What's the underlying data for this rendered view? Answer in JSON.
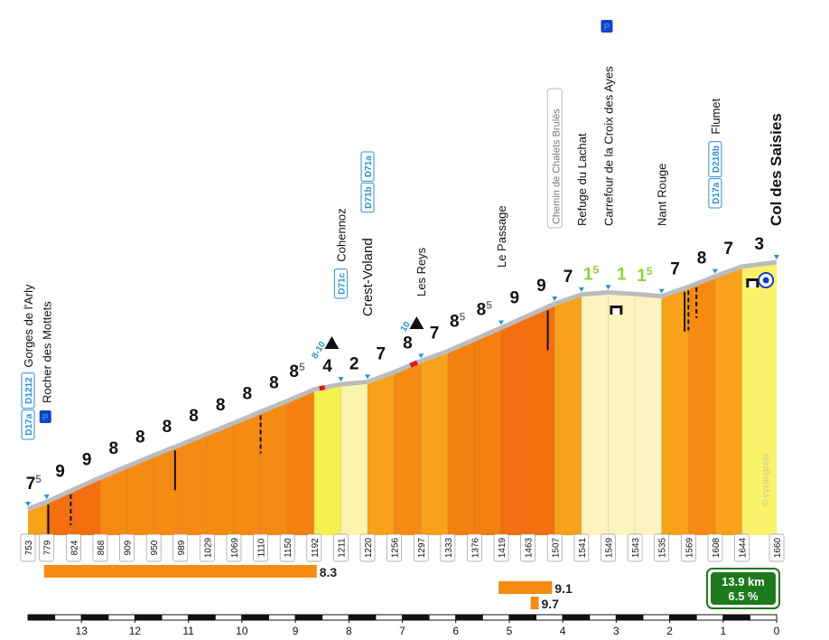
{
  "chart_data": {
    "type": "area",
    "title": "Col des Saisies",
    "x_axis": {
      "unit": "km",
      "direction": "distance to summit",
      "ticks": [
        "13",
        "12",
        "11",
        "10",
        "9",
        "8",
        "7",
        "6",
        "5",
        "4",
        "3",
        "2",
        "1",
        "0"
      ]
    },
    "xlim": [
      14.0,
      0
    ],
    "ylim": [
      720,
      1680
    ],
    "points": [
      {
        "km": 14.0,
        "alt": 753,
        "label": "753"
      },
      {
        "km": 13.65,
        "alt": 779,
        "label": "779"
      },
      {
        "km": 13.15,
        "alt": 824,
        "label": "824"
      },
      {
        "km": 12.65,
        "alt": 868,
        "label": "868"
      },
      {
        "km": 12.15,
        "alt": 909,
        "label": "909"
      },
      {
        "km": 11.65,
        "alt": 950,
        "label": "950"
      },
      {
        "km": 11.15,
        "alt": 989,
        "label": "989"
      },
      {
        "km": 10.65,
        "alt": 1029,
        "label": "1029"
      },
      {
        "km": 10.15,
        "alt": 1069,
        "label": "1069"
      },
      {
        "km": 9.65,
        "alt": 1110,
        "label": "1110"
      },
      {
        "km": 9.15,
        "alt": 1150,
        "label": "1150"
      },
      {
        "km": 8.65,
        "alt": 1192,
        "label": "1192"
      },
      {
        "km": 8.15,
        "alt": 1211,
        "label": "1211"
      },
      {
        "km": 7.65,
        "alt": 1220,
        "label": "1220"
      },
      {
        "km": 7.15,
        "alt": 1256,
        "label": "1256"
      },
      {
        "km": 6.65,
        "alt": 1297,
        "label": "1297"
      },
      {
        "km": 6.15,
        "alt": 1333,
        "label": "1333"
      },
      {
        "km": 5.65,
        "alt": 1376,
        "label": "1376"
      },
      {
        "km": 5.15,
        "alt": 1419,
        "label": "1419"
      },
      {
        "km": 4.65,
        "alt": 1463,
        "label": "1463"
      },
      {
        "km": 4.15,
        "alt": 1507,
        "label": "1507"
      },
      {
        "km": 3.65,
        "alt": 1541,
        "label": "1541"
      },
      {
        "km": 3.15,
        "alt": 1549,
        "label": "1549"
      },
      {
        "km": 2.65,
        "alt": 1543,
        "label": "1543"
      },
      {
        "km": 2.15,
        "alt": 1535,
        "label": "1535"
      },
      {
        "km": 1.65,
        "alt": 1569,
        "label": "1569"
      },
      {
        "km": 1.15,
        "alt": 1608,
        "label": "1608"
      },
      {
        "km": 0.65,
        "alt": 1644,
        "label": "1644"
      },
      {
        "km": 0.0,
        "alt": 1660,
        "label": "1660"
      }
    ],
    "segments": [
      {
        "grade": "7",
        "dec": "5",
        "color": "#f7a21a"
      },
      {
        "grade": "9",
        "dec": "",
        "color": "#f36f10"
      },
      {
        "grade": "9",
        "dec": "",
        "color": "#f36f10"
      },
      {
        "grade": "8",
        "dec": "",
        "color": "#f68b13"
      },
      {
        "grade": "8",
        "dec": "",
        "color": "#f68b13"
      },
      {
        "grade": "8",
        "dec": "",
        "color": "#f68b13"
      },
      {
        "grade": "8",
        "dec": "",
        "color": "#f68b13"
      },
      {
        "grade": "8",
        "dec": "",
        "color": "#f68b13"
      },
      {
        "grade": "8",
        "dec": "",
        "color": "#f68b13"
      },
      {
        "grade": "8",
        "dec": "",
        "color": "#f68b13"
      },
      {
        "grade": "8",
        "dec": "5",
        "color": "#f58012"
      },
      {
        "grade": "4",
        "dec": "",
        "color": "#f4f04d"
      },
      {
        "grade": "2",
        "dec": "",
        "color": "#fbf4b0"
      },
      {
        "grade": "7",
        "dec": "",
        "color": "#f7a21a"
      },
      {
        "grade": "8",
        "dec": "",
        "color": "#f68b13"
      },
      {
        "grade": "7",
        "dec": "",
        "color": "#f7a21a"
      },
      {
        "grade": "8",
        "dec": "5",
        "color": "#f58012"
      },
      {
        "grade": "8",
        "dec": "5",
        "color": "#f58012"
      },
      {
        "grade": "9",
        "dec": "",
        "color": "#f36f10"
      },
      {
        "grade": "9",
        "dec": "",
        "color": "#f36f10"
      },
      {
        "grade": "7",
        "dec": "",
        "color": "#f7a21a"
      },
      {
        "grade": "1",
        "dec": "5",
        "color": "#fbf4c0"
      },
      {
        "grade": "1",
        "dec": "",
        "color": "#fbf4c0"
      },
      {
        "grade": "1",
        "dec": "5",
        "color": "#fbf4c0"
      },
      {
        "grade": "7",
        "dec": "",
        "color": "#f7a21a"
      },
      {
        "grade": "8",
        "dec": "",
        "color": "#f68b13"
      },
      {
        "grade": "7",
        "dec": "",
        "color": "#f7a21a"
      },
      {
        "grade": "3",
        "dec": "",
        "color": "#faf26a"
      }
    ],
    "places": [
      {
        "km": 14.0,
        "text": "Gorges de l'Arly",
        "roads": [
          "D1212",
          "D17a"
        ],
        "style": "normal"
      },
      {
        "km": 13.65,
        "text": "Rocher des Mottets",
        "roads": [],
        "style": "normal",
        "parking": true
      },
      {
        "km": 8.15,
        "text": "Cohennoz",
        "roads": [
          "D71c"
        ],
        "style": "normal"
      },
      {
        "km": 7.65,
        "text": "Crest-Voland",
        "roads": [
          "D71a",
          "D71b"
        ],
        "style": "big"
      },
      {
        "km": 6.65,
        "text": "Les Reys",
        "roads": [],
        "style": "normal"
      },
      {
        "km": 5.15,
        "text": "Le Passage",
        "roads": [],
        "style": "normal"
      },
      {
        "km": 4.15,
        "text": "Chemin de Chalets Brulés",
        "roads": [],
        "style": "grey"
      },
      {
        "km": 3.65,
        "text": "Refuge du Lachat",
        "roads": [],
        "style": "normal"
      },
      {
        "km": 3.15,
        "text": "Carrefour de la Croix des Ayes",
        "roads": [],
        "style": "normal",
        "parking": true
      },
      {
        "km": 2.15,
        "text": "Nant Rouge",
        "roads": [],
        "style": "water"
      },
      {
        "km": 1.15,
        "text": "Flumet",
        "roads": [
          "D218b",
          "D17a"
        ],
        "style": "normal"
      },
      {
        "km": 0.0,
        "text": "Col des Saisies",
        "roads": [],
        "style": "summit"
      }
    ],
    "max_gradient_marks": [
      {
        "label": "8-10"
      },
      {
        "label": "10"
      }
    ],
    "steepest_bars": [
      {
        "value": "8.3"
      },
      {
        "value": "9.1"
      },
      {
        "value": "9.7"
      }
    ],
    "summary": {
      "distance": "13.9 km",
      "avg_gradient": "6.5 %"
    },
    "watermark": "© cyclingcols",
    "colors": {
      "road": "#bcbcbc",
      "road_blue": "#2a8fd6",
      "summary_bg": "#1d7a1d",
      "bar": "#f68b13",
      "green": "#8bd23a"
    }
  }
}
